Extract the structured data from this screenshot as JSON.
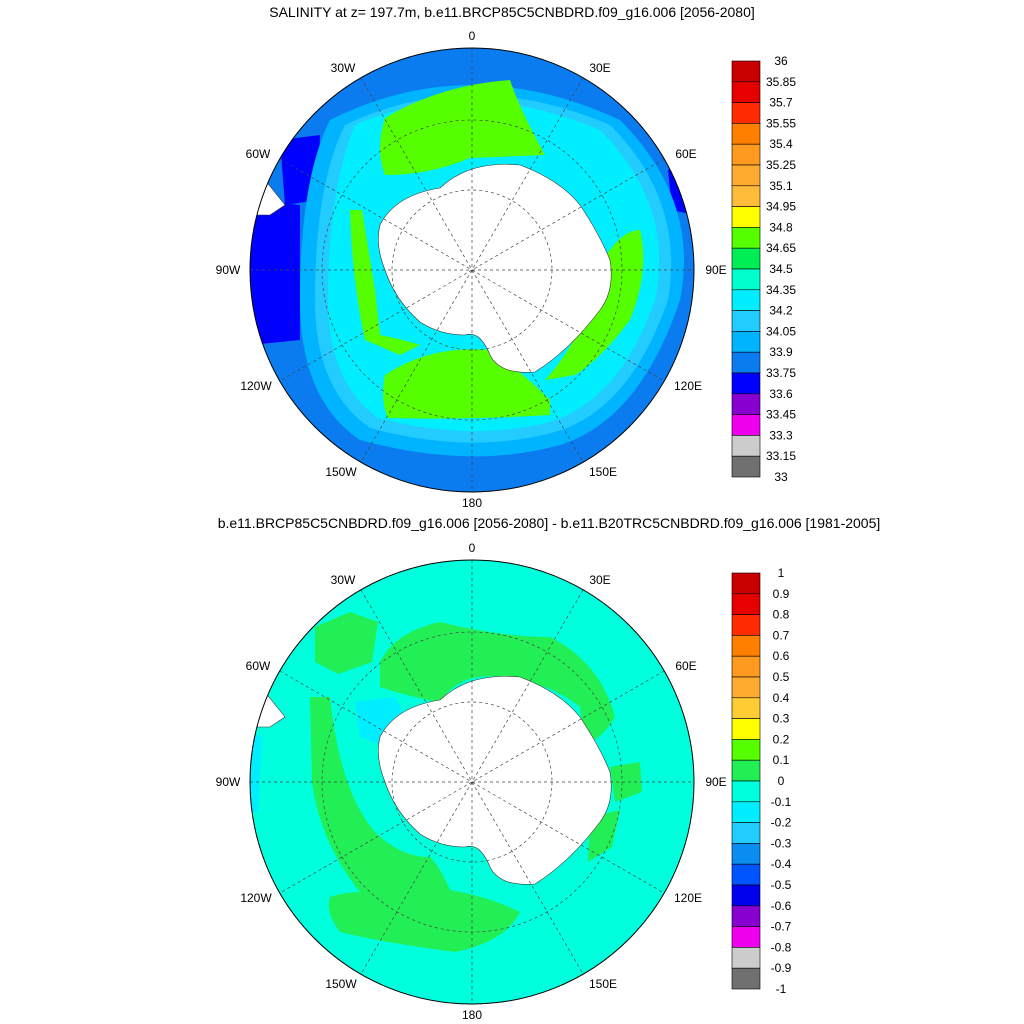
{
  "top_panel": {
    "title": "SALINITY at z= 197.7m, b.e11.BRCP85C5CNBDRD.f09_g16.006 [2056-2080]",
    "lon_labels": [
      "0",
      "30E",
      "60E",
      "90E",
      "120E",
      "150E",
      "180",
      "150W",
      "120W",
      "90W",
      "60W",
      "30W"
    ],
    "colorbar": {
      "levels": [
        "36",
        "35.85",
        "35.7",
        "35.55",
        "35.4",
        "35.25",
        "35.1",
        "34.95",
        "34.8",
        "34.65",
        "34.5",
        "34.35",
        "34.2",
        "34.05",
        "33.9",
        "33.75",
        "33.6",
        "33.45",
        "33.3",
        "33.15",
        "33"
      ],
      "colors": [
        "#c80000",
        "#e60000",
        "#ff2a00",
        "#ff8000",
        "#ff9a20",
        "#ffaa30",
        "#ffbb3a",
        "#ffff00",
        "#55ff00",
        "#00ee55",
        "#00ffcc",
        "#00eeff",
        "#22ccff",
        "#00b4ff",
        "#0a7cf0",
        "#0000ff",
        "#8800d0",
        "#ee00ee",
        "#cccccc",
        "#707070"
      ]
    }
  },
  "bottom_panel": {
    "title": "b.e11.BRCP85C5CNBDRD.f09_g16.006 [2056-2080] - b.e11.B20TRC5CNBDRD.f09_g16.006 [1981-2005]",
    "lon_labels": [
      "0",
      "30E",
      "60E",
      "90E",
      "120E",
      "150E",
      "180",
      "150W",
      "120W",
      "90W",
      "60W",
      "30W"
    ],
    "colorbar": {
      "levels": [
        "1",
        "0.9",
        "0.8",
        "0.7",
        "0.6",
        "0.5",
        "0.4",
        "0.3",
        "0.2",
        "0.1",
        "0",
        "-0.1",
        "-0.2",
        "-0.3",
        "-0.4",
        "-0.5",
        "-0.6",
        "-0.7",
        "-0.8",
        "-0.9",
        "-1"
      ],
      "colors": [
        "#c80000",
        "#e60000",
        "#ff2a00",
        "#ff8000",
        "#ff9a20",
        "#ffaa30",
        "#ffcc33",
        "#ffff00",
        "#55ff00",
        "#22ee55",
        "#00ffdd",
        "#00eeff",
        "#22ccff",
        "#0a8cf0",
        "#0055ff",
        "#0000ee",
        "#8800d0",
        "#ee00ee",
        "#cccccc",
        "#707070"
      ]
    }
  }
}
